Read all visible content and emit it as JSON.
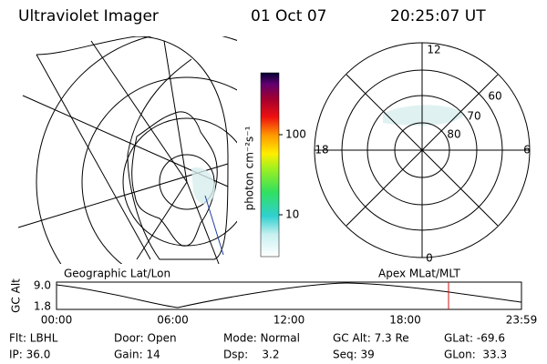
{
  "header": {
    "title": "Ultraviolet Imager",
    "date": "01 Oct 07",
    "time": "20:25:07 UT"
  },
  "colorbar": {
    "label": "photon cm⁻²s⁻¹",
    "ticks": [
      "100",
      "10"
    ]
  },
  "polar": {
    "labels": {
      "top": "12",
      "left": "18",
      "right": "6",
      "bottom": "0"
    },
    "rings": [
      "60",
      "70",
      "80"
    ]
  },
  "timeline": {
    "left_title": "Geographic Lat/Lon",
    "right_title": "Apex MLat/MLT",
    "ylabel": "GC Alt",
    "yticks": [
      "9.0",
      "1.8"
    ],
    "xticks": [
      "00:00",
      "06:00",
      "12:00",
      "18:00",
      "23:59"
    ]
  },
  "info": {
    "rows": [
      [
        "Flt: LBHL",
        "Door: Open",
        "Mode: Normal",
        "GC Alt: 7.3 Re",
        "GLat: -69.6"
      ],
      [
        "IP: 36.0",
        "Gain: 14",
        "Dsp:    3.2",
        "Seq: 39",
        "GLon:  33.3"
      ]
    ]
  }
}
